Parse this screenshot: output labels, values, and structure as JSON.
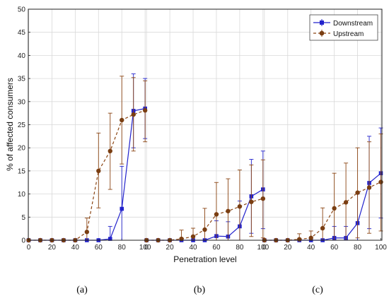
{
  "chart_data": {
    "type": "line",
    "xlabel": "Penetration level",
    "ylabel": "% of affected consumers",
    "ylim": [
      0,
      50
    ],
    "yticks": [
      0,
      5,
      10,
      15,
      20,
      25,
      30,
      35,
      40,
      45,
      50
    ],
    "grid": true,
    "legend_placement": "top-right",
    "x_tick_labels": [
      "0",
      "20",
      "40",
      "60",
      "80",
      "100"
    ],
    "panel_labels": [
      "(a)",
      "(b)",
      "(c)"
    ],
    "colors": {
      "downstream": "#2222cc",
      "upstream": "#8b4513",
      "upstream_marker": "#7a3e12",
      "grid": "#d9d9d9"
    },
    "legend": [
      "Downstream",
      "Upstream"
    ],
    "panels": [
      {
        "label": "(a)",
        "x": [
          0,
          10,
          20,
          30,
          40,
          50,
          60,
          70,
          80,
          90,
          100
        ],
        "series": [
          {
            "name": "Downstream",
            "values": [
              0,
              0,
              0,
              0,
              0,
              0,
              0,
              0.3,
              6.8,
              28,
              28.5
            ],
            "err_low": [
              0,
              0,
              0,
              0,
              0,
              0,
              0,
              0,
              0,
              20,
              22
            ],
            "err_high": [
              0,
              0,
              0,
              0,
              0,
              0,
              0,
              3,
              16,
              36,
              35
            ]
          },
          {
            "name": "Upstream",
            "values": [
              0,
              0,
              0,
              0,
              0,
              1.8,
              15,
              19.3,
              26,
              27.2,
              28.1
            ],
            "err_low": [
              0,
              0,
              0,
              0,
              0,
              0,
              7,
              11,
              16.5,
              19.3,
              21.3
            ],
            "err_high": [
              0,
              0,
              0,
              0,
              0,
              4.8,
              23.2,
              27.5,
              35.5,
              35.2,
              34.5
            ]
          }
        ]
      },
      {
        "label": "(b)",
        "x": [
          0,
          10,
          20,
          30,
          40,
          50,
          60,
          70,
          80,
          90,
          100
        ],
        "series": [
          {
            "name": "Downstream",
            "values": [
              0,
              0,
              0,
              0,
              0,
              0,
              0.9,
              0.8,
              3,
              9.5,
              11
            ],
            "err_low": [
              0,
              0,
              0,
              0,
              0,
              0,
              0,
              0,
              0,
              1.5,
              2.5
            ],
            "err_high": [
              0,
              0,
              0,
              0,
              0,
              0,
              4.2,
              4,
              8.5,
              17.5,
              19.3
            ]
          },
          {
            "name": "Upstream",
            "values": [
              0,
              0,
              0,
              0.3,
              0.8,
              2.3,
              5.6,
              6.3,
              7.3,
              8.3,
              9
            ],
            "err_low": [
              0,
              0,
              0,
              0,
              0,
              0,
              0,
              0,
              0,
              0.8,
              0.5
            ],
            "err_high": [
              0,
              0,
              0,
              2.2,
              2.6,
              6.9,
              12.5,
              13.3,
              15.2,
              16.3,
              17.4
            ]
          }
        ]
      },
      {
        "label": "(c)",
        "x": [
          0,
          10,
          20,
          30,
          40,
          50,
          60,
          70,
          80,
          90,
          100
        ],
        "series": [
          {
            "name": "Downstream",
            "values": [
              0,
              0,
              0,
              0,
              0,
              0,
              0.5,
              0.5,
              3.7,
              12.4,
              14.5
            ],
            "err_low": [
              0,
              0,
              0,
              0,
              0,
              0,
              0,
              0,
              0,
              2.5,
              4.8
            ],
            "err_high": [
              0,
              0,
              0,
              0,
              0,
              0,
              3,
              3,
              10,
              22.5,
              24.3
            ]
          },
          {
            "name": "Upstream",
            "values": [
              0,
              0,
              0,
              0.2,
              0.5,
              2.6,
              6.9,
              8.2,
              10.3,
              11.4,
              12.6
            ],
            "err_low": [
              0,
              0,
              0,
              0,
              0,
              0,
              0,
              0,
              0.5,
              1.5,
              2
            ],
            "err_high": [
              0,
              0,
              0,
              1.4,
              2,
              7,
              14.5,
              16.7,
              20,
              21.3,
              23
            ]
          }
        ]
      }
    ]
  }
}
